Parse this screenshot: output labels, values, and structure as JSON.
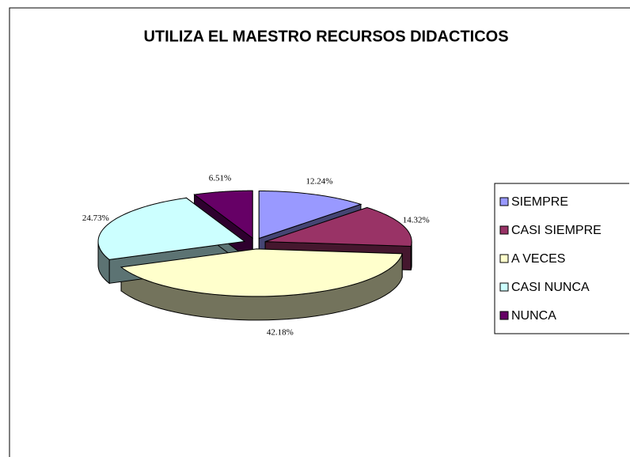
{
  "chart_data": {
    "type": "pie",
    "title": "UTILIZA EL MAESTRO RECURSOS DIDACTICOS",
    "categories": [
      "SIEMPRE",
      "CASI SIEMPRE",
      "A VECES",
      "CASI NUNCA",
      "NUNCA"
    ],
    "values": [
      12.24,
      14.32,
      42.18,
      24.73,
      6.51
    ],
    "value_labels": [
      "12.24%",
      "14.32%",
      "42.18%",
      "24.73%",
      "6.51%"
    ],
    "colors": [
      "#9999ff",
      "#993366",
      "#ffffcc",
      "#ccffff",
      "#660066"
    ],
    "legend": "right"
  }
}
